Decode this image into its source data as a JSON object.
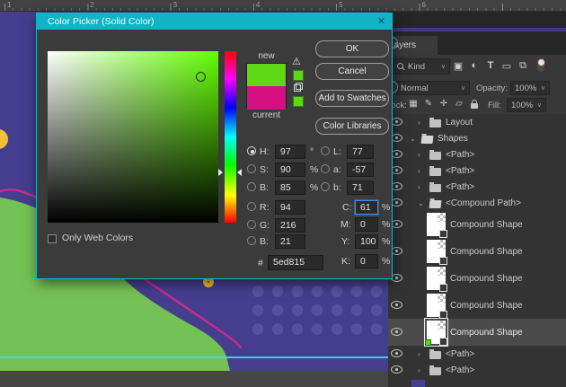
{
  "ruler": {
    "numbers": [
      "1",
      "2",
      "3",
      "4",
      "5",
      "6"
    ]
  },
  "colors": {
    "canvas_purple": "#453e8e",
    "dot_purple": "#57509f",
    "shape_green": "#74c255",
    "ring_yellow": "#f1c12f",
    "line_magenta": "#cb2b8a",
    "guide_cyan": "#43d6f0",
    "dialog_accent": "#10b4c5",
    "new_color": "#5ed815",
    "current_color": "#d60f83",
    "selected_row": "#4b4b4b"
  },
  "dialog": {
    "title": "Color Picker (Solid Color)",
    "close": "✕",
    "new_label": "new",
    "current_label": "current",
    "buttons": {
      "ok": "OK",
      "cancel": "Cancel",
      "add": "Add to Swatches",
      "libraries": "Color Libraries"
    },
    "only_web": "Only Web Colors",
    "hex_label": "#",
    "hex_value": "5ed815",
    "fields": {
      "h": {
        "label": "H:",
        "value": "97",
        "unit": "°"
      },
      "s": {
        "label": "S:",
        "value": "90",
        "unit": "%"
      },
      "b": {
        "label": "B:",
        "value": "85",
        "unit": "%"
      },
      "r": {
        "label": "R:",
        "value": "94"
      },
      "g": {
        "label": "G:",
        "value": "216"
      },
      "b2": {
        "label": "B:",
        "value": "21"
      },
      "l": {
        "label": "L:",
        "value": "77"
      },
      "a": {
        "label": "a:",
        "value": "-57"
      },
      "bb": {
        "label": "b:",
        "value": "71"
      },
      "c": {
        "label": "C:",
        "value": "61",
        "unit": "%"
      },
      "m": {
        "label": "M:",
        "value": "0",
        "unit": "%"
      },
      "y": {
        "label": "Y:",
        "value": "100",
        "unit": "%"
      },
      "k": {
        "label": "K:",
        "value": "0",
        "unit": "%"
      }
    }
  },
  "layers_panel": {
    "tab": "Layers",
    "kind": "Kind",
    "blend_mode": "Normal",
    "opacity_label": "Opacity:",
    "opacity_value": "100%",
    "lock_label": "Lock:",
    "fill_label": "Fill:",
    "fill_value": "100%",
    "rows": [
      {
        "type": "group",
        "indent": 2,
        "expanded": false,
        "name": "Layout"
      },
      {
        "type": "group",
        "indent": 1,
        "expanded": true,
        "name": "Shapes"
      },
      {
        "type": "group",
        "indent": 2,
        "expanded": false,
        "name": "<Path>"
      },
      {
        "type": "group",
        "indent": 2,
        "expanded": false,
        "name": "<Path>"
      },
      {
        "type": "group",
        "indent": 2,
        "expanded": false,
        "name": "<Path>"
      },
      {
        "type": "group",
        "indent": 2,
        "expanded": true,
        "name": "<Compound Path>"
      },
      {
        "type": "shape",
        "indent": 3,
        "name": "Compound Shape"
      },
      {
        "type": "shape",
        "indent": 3,
        "name": "Compound Shape"
      },
      {
        "type": "shape",
        "indent": 3,
        "name": "Compound Shape"
      },
      {
        "type": "shape",
        "indent": 3,
        "name": "Compound Shape"
      },
      {
        "type": "shape",
        "indent": 3,
        "name": "Compound Shape",
        "selected": true
      },
      {
        "type": "group",
        "indent": 2,
        "expanded": false,
        "name": "<Path>"
      },
      {
        "type": "group",
        "indent": 2,
        "expanded": false,
        "name": "<Path>"
      },
      {
        "type": "partial",
        "indent": 2,
        "name": ""
      }
    ]
  },
  "icons": {
    "collapsed_chevron": "›",
    "expanded_chevron": "⌄",
    "dropdown_chevron": "∨",
    "warning": "⚠"
  }
}
